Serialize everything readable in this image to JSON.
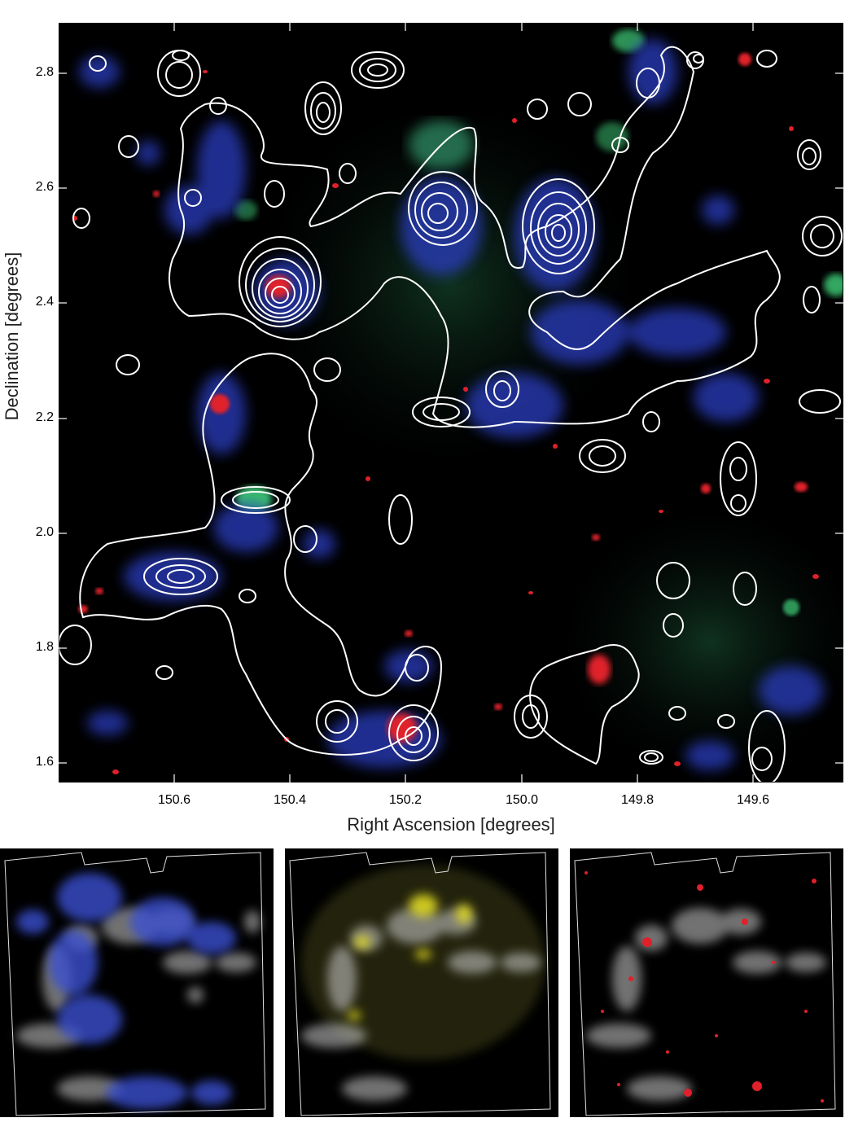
{
  "figure": {
    "xlabel": "Right Ascension [degrees]",
    "ylabel": "Declination [degrees]",
    "x_ticks": [
      "150.6",
      "150.4",
      "150.2",
      "150.0",
      "149.8",
      "149.6"
    ],
    "y_ticks": [
      "2.8",
      "2.6",
      "2.4",
      "2.2",
      "2.0",
      "1.8",
      "1.6"
    ],
    "ra_range": [
      150.78,
      149.43
    ],
    "dec_range": [
      1.57,
      2.89
    ],
    "colors": {
      "background": "#000000",
      "contour": "#ffffff",
      "blue_channel": "#3a4fd0",
      "green_channel": "#2fbf6a",
      "red_channel": "#e0202a",
      "yellow_channel": "#e6e020"
    }
  },
  "panels": [
    {
      "overlay_color": "#3a4fd0",
      "overlay": "blue"
    },
    {
      "overlay_color": "#e6e020",
      "overlay": "yellow"
    },
    {
      "overlay_color": "#e0202a",
      "overlay": "red"
    }
  ]
}
